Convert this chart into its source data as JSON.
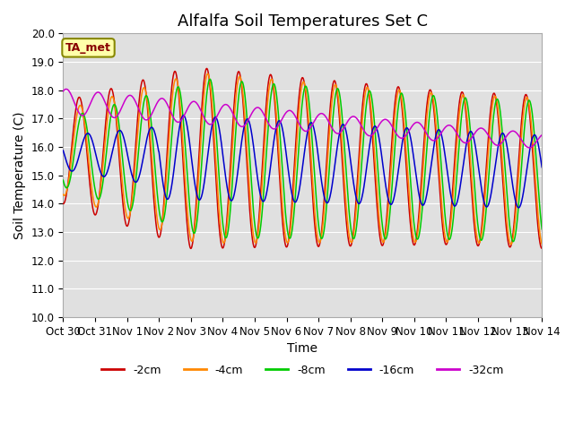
{
  "title": "Alfalfa Soil Temperatures Set C",
  "xlabel": "Time",
  "ylabel": "Soil Temperature (C)",
  "ylim": [
    10.0,
    20.0
  ],
  "yticks": [
    10.0,
    11.0,
    12.0,
    13.0,
    14.0,
    15.0,
    16.0,
    17.0,
    18.0,
    19.0,
    20.0
  ],
  "xtick_labels": [
    "Oct 30",
    "Oct 31",
    "Nov 1",
    "Nov 2",
    "Nov 3",
    "Nov 4",
    "Nov 5",
    "Nov 6",
    "Nov 7",
    "Nov 8",
    "Nov 9",
    "Nov 10",
    "Nov 11",
    "Nov 12",
    "Nov 13",
    "Nov 14"
  ],
  "colors": {
    "-2cm": "#cc0000",
    "-4cm": "#ff8800",
    "-8cm": "#00cc00",
    "-16cm": "#0000cc",
    "-32cm": "#cc00cc"
  },
  "annotation_text": "TA_met",
  "annotation_color": "#880000",
  "annotation_bg": "#ffffaa",
  "bg_color": "#e0e0e0",
  "grid_color": "#ffffff",
  "title_fontsize": 13,
  "label_fontsize": 10,
  "tick_fontsize": 8.5
}
